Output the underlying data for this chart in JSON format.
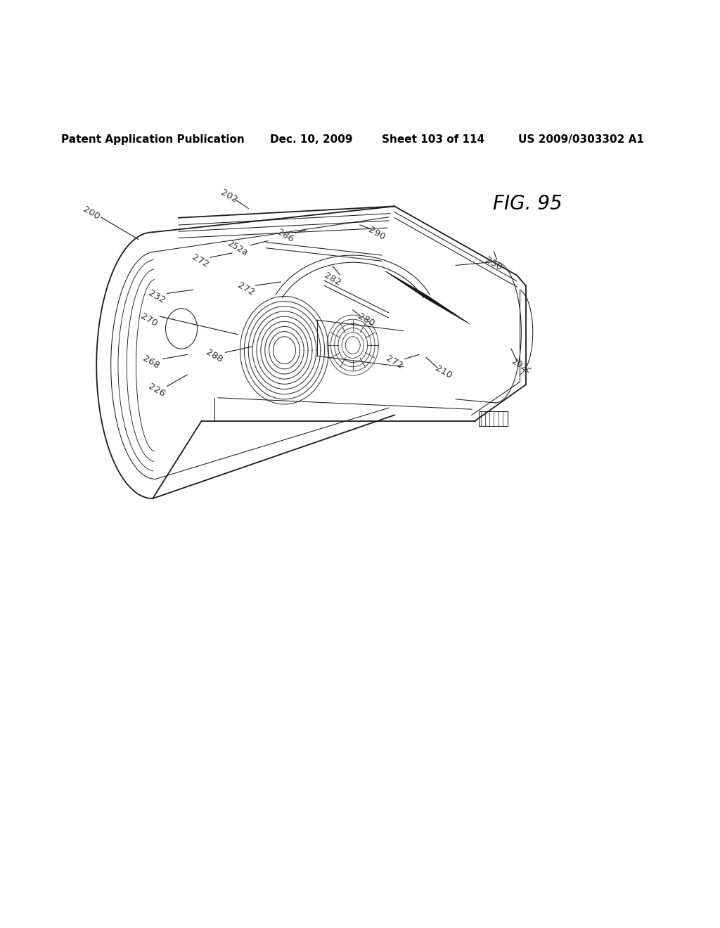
{
  "header_left": "Patent Application Publication",
  "header_date": "Dec. 10, 2009",
  "header_sheet": "Sheet 103 of 114",
  "header_patent": "US 2009/0303302 A1",
  "fig_label": "FIG. 95",
  "bg_color": "#ffffff",
  "line_color": "#1a1a1a",
  "label_color": "#333333",
  "header_fontsize": 11,
  "label_fontsize": 9.5,
  "fig_label_fontsize": 20
}
